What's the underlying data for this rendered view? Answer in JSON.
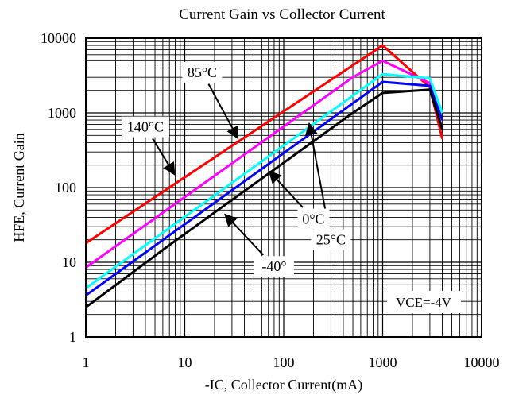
{
  "chart_data": {
    "type": "line",
    "title": "Current Gain vs Collector Current",
    "xlabel": "-IC, Collector Current(mA)",
    "ylabel": "HFE, Current Gain",
    "x_scale": "log",
    "y_scale": "log",
    "xlim": [
      1,
      10000
    ],
    "ylim": [
      1,
      10000
    ],
    "grid": true,
    "x_ticks": [
      "1",
      "10",
      "100",
      "1000",
      "10000"
    ],
    "y_ticks": [
      "1",
      "10",
      "100",
      "1000",
      "10000"
    ],
    "condition": "VCE=-4V",
    "series": [
      {
        "name": "140°C",
        "color": "#ff0000",
        "x": [
          1,
          1000,
          3000,
          4000
        ],
        "y": [
          18,
          8000,
          2200,
          450
        ]
      },
      {
        "name": "85°C",
        "color": "#ff00ff",
        "x": [
          1,
          500,
          1000,
          3000,
          4000
        ],
        "y": [
          8.5,
          3000,
          5000,
          2500,
          600
        ]
      },
      {
        "name": "25°C",
        "color": "#00ffff",
        "x": [
          1,
          1000,
          3000,
          4000
        ],
        "y": [
          4.5,
          3300,
          2900,
          1000
        ]
      },
      {
        "name": "0°C",
        "color": "#0000ff",
        "x": [
          1,
          1000,
          3000,
          4000
        ],
        "y": [
          3.6,
          2600,
          2300,
          800
        ]
      },
      {
        "name": "-40°",
        "color": "#000000",
        "x": [
          1,
          7,
          500,
          1000,
          3000,
          4000
        ],
        "y": [
          2.5,
          17,
          1000,
          1850,
          2050,
          600
        ]
      }
    ],
    "callouts": [
      {
        "label": "25°C",
        "series": "25°C",
        "at": [
          180,
          750
        ],
        "box": [
          300,
          20
        ]
      },
      {
        "label": "85°C",
        "series": "85°C",
        "at": [
          35,
          440
        ],
        "box": [
          15,
          3500
        ]
      },
      {
        "label": "140°C",
        "series": "140°C",
        "at": [
          8,
          145
        ],
        "box": [
          4,
          650
        ]
      },
      {
        "label": "0°C",
        "series": "0°C",
        "at": [
          70,
          170
        ],
        "box": [
          200,
          38
        ]
      },
      {
        "label": "-40°",
        "series": "-40°",
        "at": [
          25,
          45
        ],
        "box": [
          80,
          8.8
        ]
      }
    ]
  }
}
